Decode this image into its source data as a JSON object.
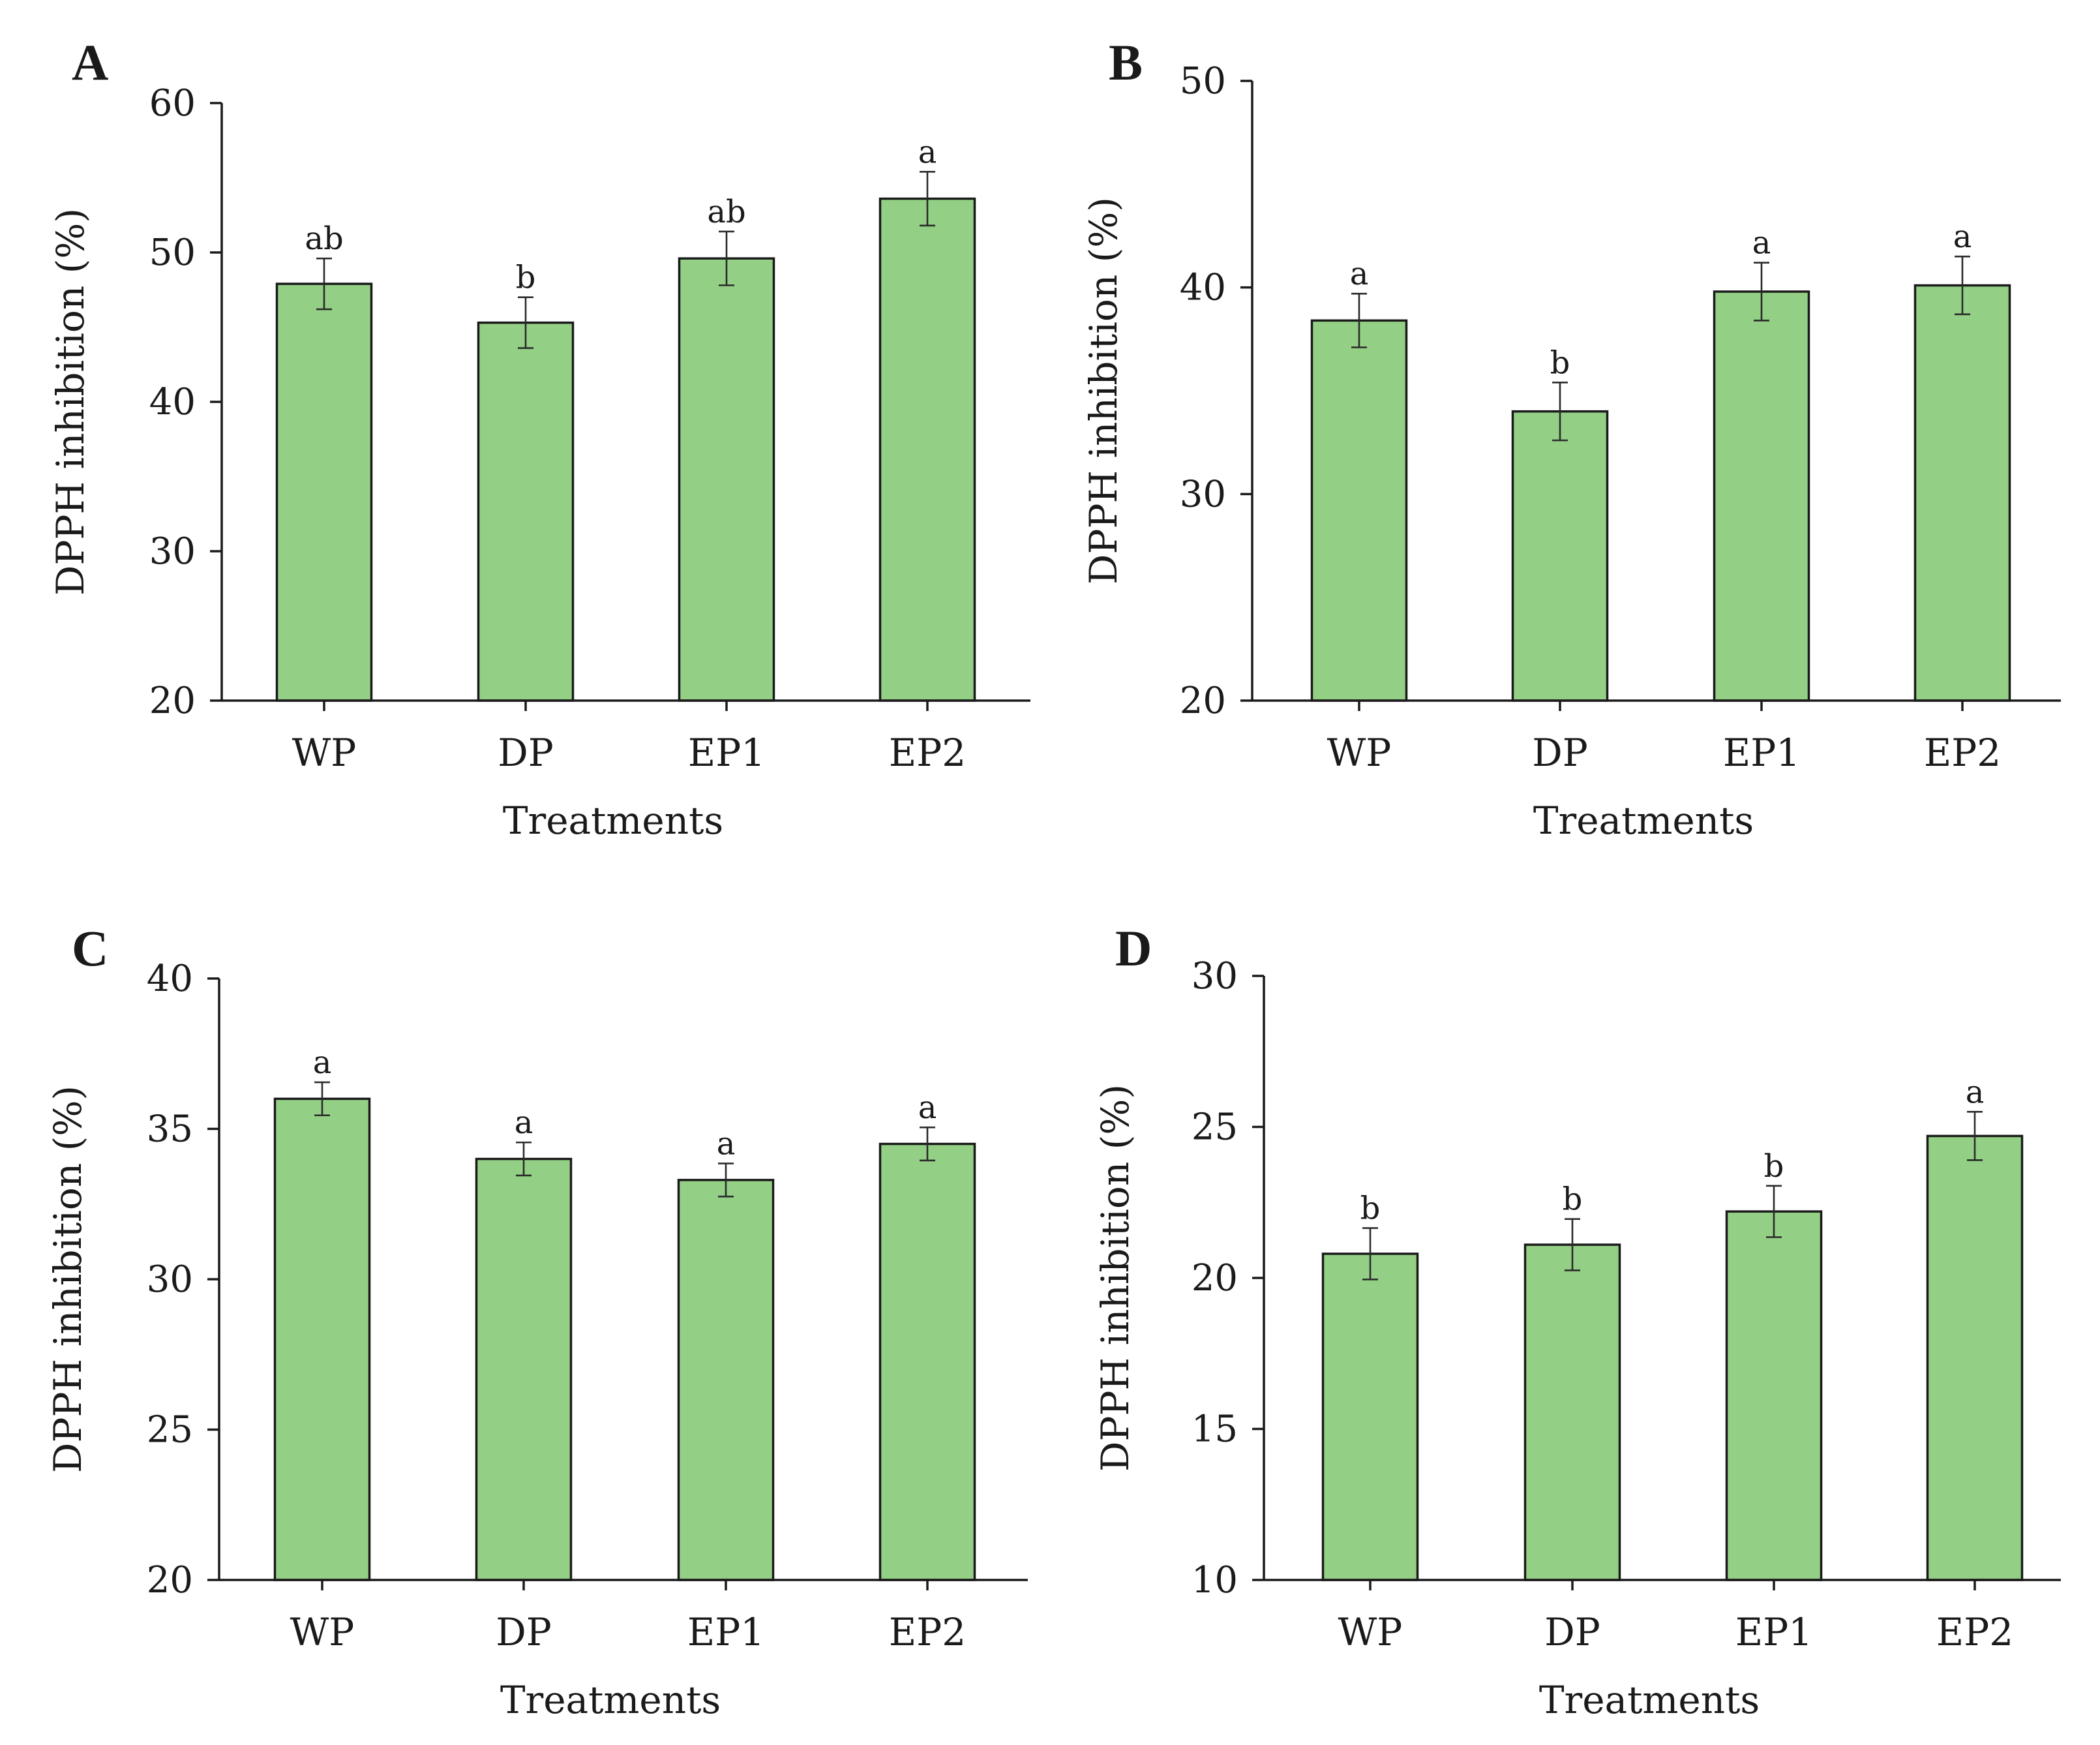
{
  "figure": {
    "colors": {
      "bar_fill": "#93cf85",
      "bar_stroke": "#1a1a1a",
      "text": "#1a1a1a"
    }
  },
  "chart_data": [
    {
      "type": "bar",
      "panel": "A",
      "categories": [
        "WP",
        "DP",
        "EP1",
        "EP2"
      ],
      "values": [
        47.9,
        45.3,
        49.6,
        53.6
      ],
      "errors": [
        1.7,
        1.7,
        1.8,
        1.8
      ],
      "significance": [
        "ab",
        "b",
        "ab",
        "a"
      ],
      "xlabel": "Treatments",
      "ylabel": "DPPH inhibition (%)",
      "ylim": [
        20,
        60
      ],
      "yticks": [
        20,
        30,
        40,
        50,
        60
      ],
      "grid": false,
      "legend": "none"
    },
    {
      "type": "bar",
      "panel": "B",
      "categories": [
        "WP",
        "DP",
        "EP1",
        "EP2"
      ],
      "values": [
        38.4,
        34.0,
        39.8,
        40.1
      ],
      "errors": [
        1.3,
        1.4,
        1.4,
        1.4
      ],
      "significance": [
        "a",
        "b",
        "a",
        "a"
      ],
      "xlabel": "Treatments",
      "ylabel": "DPPH inhibition (%)",
      "ylim": [
        20,
        50
      ],
      "yticks": [
        20,
        30,
        40,
        50
      ],
      "grid": false,
      "legend": "none"
    },
    {
      "type": "bar",
      "panel": "C",
      "categories": [
        "WP",
        "DP",
        "EP1",
        "EP2"
      ],
      "values": [
        36.0,
        34.0,
        33.3,
        34.5
      ],
      "errors": [
        0.55,
        0.55,
        0.55,
        0.55
      ],
      "significance": [
        "a",
        "a",
        "a",
        "a"
      ],
      "xlabel": "Treatments",
      "ylabel": "DPPH inhibition (%)",
      "ylim": [
        20,
        40
      ],
      "yticks": [
        20,
        25,
        30,
        35,
        40
      ],
      "grid": false,
      "legend": "none"
    },
    {
      "type": "bar",
      "panel": "D",
      "categories": [
        "WP",
        "DP",
        "EP1",
        "EP2"
      ],
      "values": [
        20.8,
        21.1,
        22.2,
        24.7
      ],
      "errors": [
        0.85,
        0.85,
        0.85,
        0.8
      ],
      "significance": [
        "b",
        "b",
        "b",
        "a"
      ],
      "xlabel": "Treatments",
      "ylabel": "DPPH inhibition (%)",
      "ylim": [
        10,
        30
      ],
      "yticks": [
        10,
        15,
        20,
        25,
        30
      ],
      "grid": false,
      "legend": "none"
    }
  ]
}
